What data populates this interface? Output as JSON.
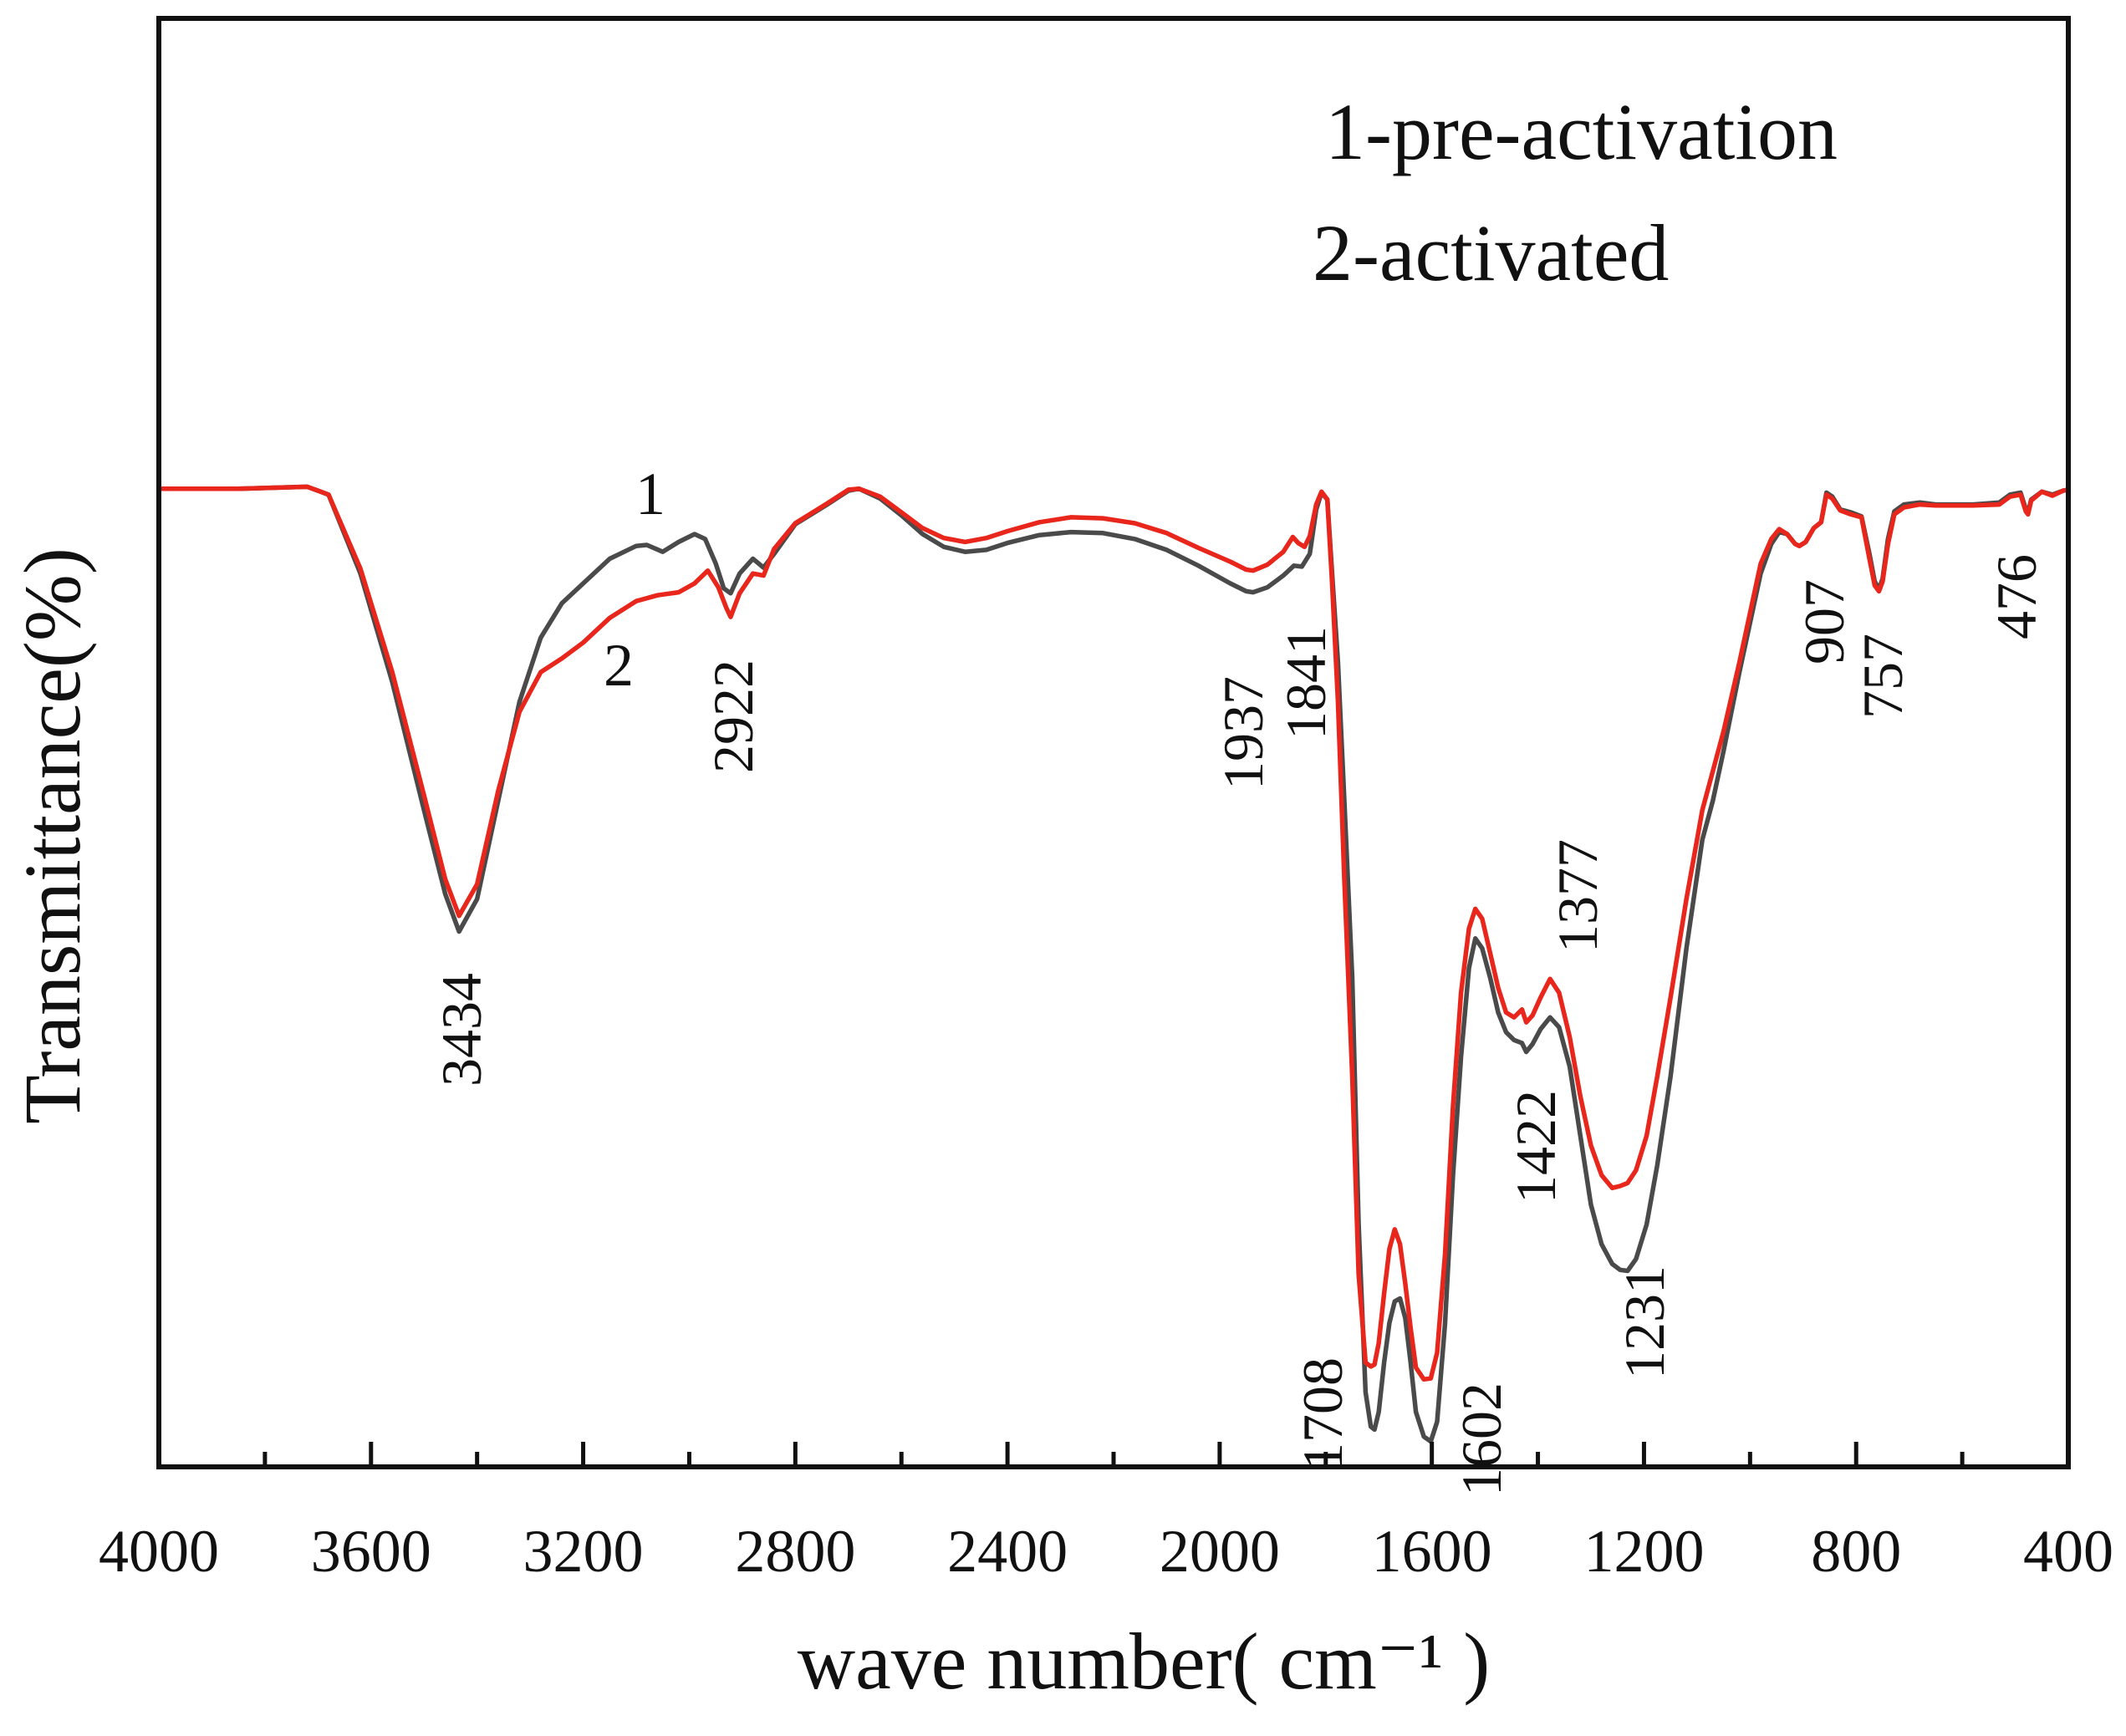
{
  "chart_data": {
    "type": "line",
    "title": "",
    "xlabel": "wave number( cm⁻¹ )",
    "ylabel": "Transmittance(%)",
    "xlim": [
      4000,
      400
    ],
    "x_reversed": true,
    "ylim": [
      0,
      100
    ],
    "y_tick_labels_shown": false,
    "x_ticks": [
      4000,
      3600,
      3200,
      2800,
      2400,
      2000,
      1600,
      1200,
      800,
      400
    ],
    "x_tick_labels": [
      "4000",
      "3600",
      "3200",
      "2800",
      "2400",
      "2000",
      "1600",
      "1200",
      "800",
      "400"
    ],
    "grid": false,
    "legend_position": "top-right",
    "legend_lines": [
      "1-pre-activation",
      "2-activated"
    ],
    "series": [
      {
        "name": "1-pre-activation",
        "curve_tag": "1",
        "color": "#4a4a4a",
        "points": [
          [
            4000,
            99.6
          ],
          [
            3850,
            99.6
          ],
          [
            3720,
            99.8
          ],
          [
            3680,
            99.0
          ],
          [
            3620,
            91.0
          ],
          [
            3560,
            80.0
          ],
          [
            3500,
            67.0
          ],
          [
            3460,
            58.5
          ],
          [
            3434,
            54.7
          ],
          [
            3400,
            58.0
          ],
          [
            3360,
            68.0
          ],
          [
            3320,
            78.0
          ],
          [
            3280,
            84.5
          ],
          [
            3240,
            88.0
          ],
          [
            3200,
            90.0
          ],
          [
            3150,
            92.5
          ],
          [
            3100,
            93.8
          ],
          [
            3080,
            93.9
          ],
          [
            3050,
            93.2
          ],
          [
            3020,
            94.2
          ],
          [
            2990,
            95.0
          ],
          [
            2970,
            94.5
          ],
          [
            2950,
            92.0
          ],
          [
            2935,
            89.5
          ],
          [
            2922,
            89.0
          ],
          [
            2905,
            91.0
          ],
          [
            2880,
            92.5
          ],
          [
            2860,
            91.6
          ],
          [
            2840,
            93.0
          ],
          [
            2800,
            96.0
          ],
          [
            2740,
            98.0
          ],
          [
            2700,
            99.4
          ],
          [
            2680,
            99.6
          ],
          [
            2640,
            98.6
          ],
          [
            2600,
            96.9
          ],
          [
            2560,
            95.0
          ],
          [
            2520,
            93.7
          ],
          [
            2480,
            93.2
          ],
          [
            2440,
            93.4
          ],
          [
            2400,
            94.1
          ],
          [
            2340,
            94.9
          ],
          [
            2280,
            95.2
          ],
          [
            2220,
            95.1
          ],
          [
            2160,
            94.5
          ],
          [
            2100,
            93.4
          ],
          [
            2040,
            91.8
          ],
          [
            1980,
            90.0
          ],
          [
            1950,
            89.2
          ],
          [
            1937,
            89.1
          ],
          [
            1910,
            89.6
          ],
          [
            1880,
            90.8
          ],
          [
            1860,
            91.8
          ],
          [
            1845,
            91.7
          ],
          [
            1830,
            93.0
          ],
          [
            1818,
            97.5
          ],
          [
            1808,
            99.2
          ],
          [
            1797,
            98.5
          ],
          [
            1788,
            91.0
          ],
          [
            1777,
            82.0
          ],
          [
            1765,
            68.0
          ],
          [
            1750,
            50.0
          ],
          [
            1738,
            25.0
          ],
          [
            1725,
            8.0
          ],
          [
            1715,
            4.5
          ],
          [
            1708,
            4.2
          ],
          [
            1700,
            6.0
          ],
          [
            1690,
            11.0
          ],
          [
            1680,
            15.0
          ],
          [
            1670,
            17.2
          ],
          [
            1660,
            17.5
          ],
          [
            1650,
            15.5
          ],
          [
            1640,
            11.0
          ],
          [
            1630,
            6.0
          ],
          [
            1615,
            3.5
          ],
          [
            1602,
            3.0
          ],
          [
            1590,
            5.0
          ],
          [
            1575,
            15.0
          ],
          [
            1560,
            30.0
          ],
          [
            1545,
            42.0
          ],
          [
            1530,
            51.0
          ],
          [
            1518,
            54.0
          ],
          [
            1505,
            53.0
          ],
          [
            1490,
            50.0
          ],
          [
            1475,
            46.5
          ],
          [
            1460,
            44.5
          ],
          [
            1445,
            43.7
          ],
          [
            1430,
            43.4
          ],
          [
            1422,
            42.5
          ],
          [
            1410,
            43.3
          ],
          [
            1395,
            44.8
          ],
          [
            1377,
            46.0
          ],
          [
            1360,
            45.0
          ],
          [
            1340,
            41.0
          ],
          [
            1320,
            34.0
          ],
          [
            1300,
            27.0
          ],
          [
            1280,
            23.0
          ],
          [
            1260,
            21.0
          ],
          [
            1245,
            20.4
          ],
          [
            1231,
            20.3
          ],
          [
            1215,
            21.5
          ],
          [
            1195,
            25.0
          ],
          [
            1175,
            31.0
          ],
          [
            1150,
            40.0
          ],
          [
            1120,
            53.0
          ],
          [
            1090,
            64.0
          ],
          [
            1070,
            68.0
          ],
          [
            1050,
            73.0
          ],
          [
            1020,
            81.0
          ],
          [
            1000,
            86.0
          ],
          [
            980,
            91.0
          ],
          [
            960,
            94.0
          ],
          [
            945,
            95.2
          ],
          [
            930,
            95.0
          ],
          [
            915,
            94.0
          ],
          [
            907,
            93.8
          ],
          [
            895,
            94.2
          ],
          [
            880,
            95.6
          ],
          [
            866,
            96.2
          ],
          [
            856,
            99.2
          ],
          [
            845,
            98.8
          ],
          [
            830,
            97.5
          ],
          [
            810,
            97.2
          ],
          [
            790,
            96.8
          ],
          [
            775,
            93.0
          ],
          [
            765,
            90.2
          ],
          [
            757,
            89.4
          ],
          [
            750,
            90.5
          ],
          [
            740,
            94.5
          ],
          [
            728,
            97.3
          ],
          [
            710,
            98.0
          ],
          [
            680,
            98.2
          ],
          [
            650,
            98.0
          ],
          [
            620,
            98.0
          ],
          [
            580,
            98.0
          ],
          [
            530,
            98.2
          ],
          [
            510,
            99.0
          ],
          [
            490,
            99.2
          ],
          [
            480,
            97.5
          ],
          [
            476,
            97.2
          ],
          [
            470,
            98.5
          ],
          [
            450,
            99.3
          ],
          [
            430,
            99.0
          ],
          [
            410,
            99.4
          ],
          [
            400,
            99.5
          ]
        ]
      },
      {
        "name": "2-activated",
        "curve_tag": "2",
        "color": "#e8261c",
        "points": [
          [
            4000,
            99.6
          ],
          [
            3850,
            99.6
          ],
          [
            3720,
            99.8
          ],
          [
            3680,
            99.0
          ],
          [
            3620,
            91.5
          ],
          [
            3560,
            81.0
          ],
          [
            3500,
            68.5
          ],
          [
            3460,
            60.0
          ],
          [
            3434,
            56.3
          ],
          [
            3400,
            59.5
          ],
          [
            3360,
            69.0
          ],
          [
            3320,
            77.0
          ],
          [
            3280,
            81.0
          ],
          [
            3240,
            82.4
          ],
          [
            3200,
            84.0
          ],
          [
            3150,
            86.5
          ],
          [
            3100,
            88.2
          ],
          [
            3060,
            88.8
          ],
          [
            3020,
            89.1
          ],
          [
            2990,
            90.0
          ],
          [
            2965,
            91.3
          ],
          [
            2945,
            89.6
          ],
          [
            2930,
            87.5
          ],
          [
            2922,
            86.6
          ],
          [
            2905,
            89.0
          ],
          [
            2880,
            91.0
          ],
          [
            2860,
            90.8
          ],
          [
            2840,
            93.5
          ],
          [
            2800,
            96.1
          ],
          [
            2740,
            98.1
          ],
          [
            2700,
            99.5
          ],
          [
            2680,
            99.6
          ],
          [
            2640,
            98.8
          ],
          [
            2600,
            97.2
          ],
          [
            2560,
            95.6
          ],
          [
            2520,
            94.6
          ],
          [
            2480,
            94.2
          ],
          [
            2440,
            94.6
          ],
          [
            2400,
            95.3
          ],
          [
            2340,
            96.2
          ],
          [
            2280,
            96.7
          ],
          [
            2220,
            96.6
          ],
          [
            2160,
            96.1
          ],
          [
            2100,
            95.1
          ],
          [
            2040,
            93.6
          ],
          [
            1980,
            92.2
          ],
          [
            1950,
            91.4
          ],
          [
            1937,
            91.3
          ],
          [
            1910,
            91.9
          ],
          [
            1880,
            93.2
          ],
          [
            1862,
            94.7
          ],
          [
            1852,
            94.1
          ],
          [
            1840,
            93.7
          ],
          [
            1830,
            94.8
          ],
          [
            1818,
            98.0
          ],
          [
            1808,
            99.3
          ],
          [
            1797,
            98.5
          ],
          [
            1788,
            90.0
          ],
          [
            1777,
            78.0
          ],
          [
            1765,
            60.0
          ],
          [
            1750,
            40.0
          ],
          [
            1738,
            20.0
          ],
          [
            1725,
            11.0
          ],
          [
            1715,
            10.6
          ],
          [
            1708,
            10.8
          ],
          [
            1700,
            13.0
          ],
          [
            1690,
            18.0
          ],
          [
            1680,
            22.5
          ],
          [
            1670,
            24.5
          ],
          [
            1660,
            23.0
          ],
          [
            1650,
            19.0
          ],
          [
            1640,
            14.5
          ],
          [
            1630,
            10.5
          ],
          [
            1615,
            9.3
          ],
          [
            1602,
            9.4
          ],
          [
            1590,
            12.0
          ],
          [
            1575,
            22.0
          ],
          [
            1560,
            37.0
          ],
          [
            1545,
            48.5
          ],
          [
            1530,
            55.0
          ],
          [
            1518,
            57.0
          ],
          [
            1505,
            56.0
          ],
          [
            1490,
            52.5
          ],
          [
            1475,
            49.0
          ],
          [
            1460,
            46.5
          ],
          [
            1445,
            46.0
          ],
          [
            1430,
            46.8
          ],
          [
            1422,
            45.5
          ],
          [
            1410,
            46.2
          ],
          [
            1395,
            48.0
          ],
          [
            1377,
            49.9
          ],
          [
            1360,
            48.5
          ],
          [
            1340,
            44.0
          ],
          [
            1320,
            38.0
          ],
          [
            1300,
            33.0
          ],
          [
            1280,
            30.0
          ],
          [
            1260,
            28.7
          ],
          [
            1245,
            28.9
          ],
          [
            1231,
            29.2
          ],
          [
            1215,
            30.5
          ],
          [
            1195,
            34.0
          ],
          [
            1175,
            40.0
          ],
          [
            1150,
            48.0
          ],
          [
            1120,
            58.0
          ],
          [
            1090,
            67.0
          ],
          [
            1070,
            71.0
          ],
          [
            1050,
            75.0
          ],
          [
            1020,
            82.0
          ],
          [
            1000,
            87.0
          ],
          [
            980,
            92.0
          ],
          [
            960,
            94.5
          ],
          [
            945,
            95.5
          ],
          [
            930,
            95.0
          ],
          [
            915,
            94.0
          ],
          [
            907,
            93.8
          ],
          [
            895,
            94.2
          ],
          [
            880,
            95.6
          ],
          [
            866,
            96.2
          ],
          [
            856,
            99.0
          ],
          [
            845,
            98.6
          ],
          [
            830,
            97.4
          ],
          [
            810,
            97.0
          ],
          [
            790,
            96.7
          ],
          [
            775,
            92.5
          ],
          [
            765,
            89.8
          ],
          [
            757,
            89.2
          ],
          [
            750,
            90.2
          ],
          [
            740,
            94.0
          ],
          [
            728,
            97.0
          ],
          [
            710,
            97.7
          ],
          [
            680,
            98.0
          ],
          [
            650,
            97.9
          ],
          [
            620,
            97.9
          ],
          [
            580,
            97.9
          ],
          [
            530,
            98.0
          ],
          [
            510,
            98.8
          ],
          [
            490,
            99.0
          ],
          [
            480,
            97.3
          ],
          [
            476,
            97.0
          ],
          [
            470,
            98.4
          ],
          [
            450,
            99.3
          ],
          [
            430,
            98.9
          ],
          [
            410,
            99.4
          ],
          [
            400,
            99.5
          ]
        ]
      }
    ],
    "peak_annotations": [
      {
        "text": "3434",
        "wavenumber": 3434
      },
      {
        "text": "2922",
        "wavenumber": 2922
      },
      {
        "text": "1937",
        "wavenumber": 1937
      },
      {
        "text": "1841",
        "wavenumber": 1841
      },
      {
        "text": "1708",
        "wavenumber": 1708
      },
      {
        "text": "1602",
        "wavenumber": 1602
      },
      {
        "text": "1422",
        "wavenumber": 1422
      },
      {
        "text": "1377",
        "wavenumber": 1377
      },
      {
        "text": "1231",
        "wavenumber": 1231
      },
      {
        "text": "907",
        "wavenumber": 907
      },
      {
        "text": "757",
        "wavenumber": 757
      },
      {
        "text": "476",
        "wavenumber": 476
      }
    ]
  }
}
